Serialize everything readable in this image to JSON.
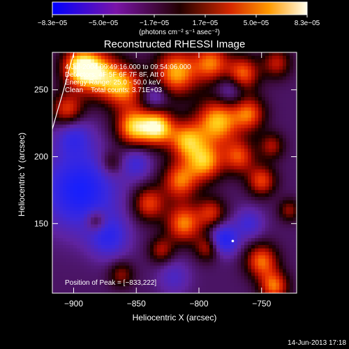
{
  "colorbar": {
    "tick_labels": [
      "−8.3e−05",
      "−5.0e−05",
      "−1.7e−05",
      "1.7e−05",
      "5.0e−05",
      "8.3e−05"
    ],
    "units": "(photons cm⁻² s⁻¹ asec⁻²)",
    "range": [
      -8.3e-05,
      8.3e-05
    ]
  },
  "chart_data": {
    "type": "heatmap",
    "title": "Reconstructed RHESSI Image",
    "xlabel": "Heliocentric X (arcsec)",
    "ylabel": "Heliocentric Y (arcsec)",
    "xlim": [
      -917,
      -722
    ],
    "ylim": [
      98,
      278
    ],
    "x_ticks": [
      -900,
      -850,
      -800,
      -750
    ],
    "y_ticks": [
      150,
      200,
      250
    ],
    "x_tick_labels": [
      "−900",
      "−850",
      "−800",
      "−750"
    ],
    "y_tick_labels": [
      "150",
      "200",
      "250"
    ],
    "annotations": [
      "4-Jul-2004 09:49:16.000 to 09:54:06.000",
      "Detectors: 4F 5F 6F 7F 8F, Att 0",
      "Energy Range: 25.0 - 50.0 keV",
      "Clean    Total counts: 3.71E+03"
    ],
    "peak_label": "Position of Peak = [−833,222]",
    "peak": [
      -833,
      222
    ],
    "marker": [
      -773,
      137
    ],
    "limb_arc": "white",
    "grid": false
  },
  "footer": {
    "timestamp": "14-Jun-2013 17:18"
  },
  "colors": {
    "background": "#000000",
    "text": "#ffffff"
  }
}
